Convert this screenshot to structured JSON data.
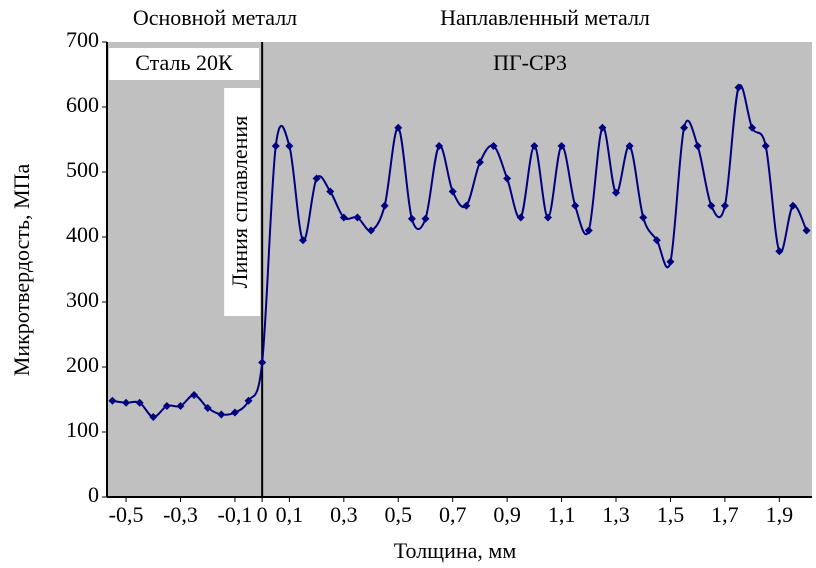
{
  "chart_data": {
    "type": "line",
    "y_label": "Микротвердость, МПа",
    "x_label": "Толщина, мм",
    "annotations": [
      "Основной металл",
      "Наплавленный металл",
      "Сталь 20К",
      "ПГ-СР3",
      "Линия сплавления"
    ],
    "x": [
      -0.55,
      -0.5,
      -0.45,
      -0.4,
      -0.35,
      -0.3,
      -0.25,
      -0.2,
      -0.15,
      -0.1,
      -0.05,
      0,
      0.05,
      0.1,
      0.15,
      0.2,
      0.25,
      0.3,
      0.35,
      0.4,
      0.45,
      0.5,
      0.55,
      0.6,
      0.65,
      0.7,
      0.75,
      0.8,
      0.85,
      0.9,
      0.95,
      1.0,
      1.05,
      1.1,
      1.15,
      1.2,
      1.25,
      1.3,
      1.35,
      1.4,
      1.45,
      1.5,
      1.55,
      1.6,
      1.65,
      1.7,
      1.75,
      1.8,
      1.85,
      1.9,
      1.95,
      2.0
    ],
    "series": [
      {
        "name": "Микротвердость",
        "color": "#000080",
        "values": [
          148,
          145,
          145,
          123,
          140,
          140,
          157,
          137,
          127,
          130,
          148,
          207,
          540,
          540,
          395,
          490,
          470,
          430,
          430,
          410,
          448,
          568,
          428,
          428,
          540,
          470,
          448,
          515,
          540,
          490,
          430,
          540,
          430,
          540,
          448,
          410,
          568,
          468,
          540,
          430,
          395,
          362,
          568,
          540,
          448,
          448,
          630,
          568,
          540,
          378,
          448,
          410
        ]
      }
    ],
    "xlim": [
      -0.57,
      2.02
    ],
    "ylim": [
      0,
      700
    ],
    "xticks": [
      {
        "value": -0.5,
        "label": "-0,5"
      },
      {
        "value": -0.3,
        "label": "-0,3"
      },
      {
        "value": -0.1,
        "label": "-0,1"
      },
      0,
      {
        "value": 0.1,
        "label": "0,1"
      },
      {
        "value": 0.3,
        "label": "0,3"
      },
      {
        "value": 0.5,
        "label": "0,5"
      },
      {
        "value": 0.7,
        "label": "0,7"
      },
      {
        "value": 0.9,
        "label": "0,9"
      },
      {
        "value": 1.1,
        "label": "1,1"
      },
      {
        "value": 1.3,
        "label": "1,3"
      },
      {
        "value": 1.5,
        "label": "1,5"
      },
      {
        "value": 1.7,
        "label": "1,7"
      },
      {
        "value": 1.9,
        "label": "1,9"
      }
    ],
    "yticks": [
      0,
      100,
      200,
      300,
      400,
      500,
      600,
      700
    ],
    "fusion_line_x": 0,
    "plot_background": "#c0c0c0"
  }
}
